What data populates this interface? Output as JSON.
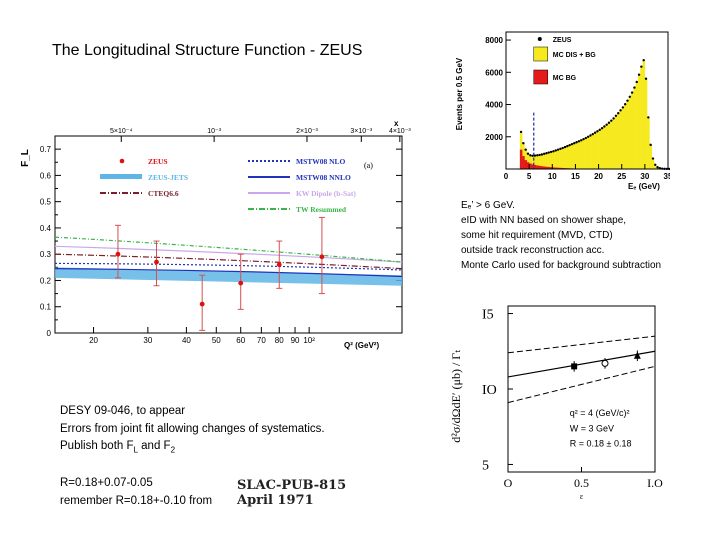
{
  "title": "The Longitudinal Structure Function - ZEUS",
  "cuts_note": {
    "line1": "Eₑ’ > 6 GeV.",
    "line2": "eID with NN based on shower shape,",
    "line3": "some hit requirement (MVD, CTD)",
    "line4": "outside track reconstruction acc.",
    "line5": "Monte Carlo used for background subtraction"
  },
  "desy_note": {
    "line1": "DESY 09-046, to appear",
    "line2": " Errors from joint fit allowing changes of systematics.",
    "line3": " Publish both F_L and F_2"
  },
  "r_note": {
    "line1": "R=0.18+0.07-0.05",
    "line2": "remember R=0.18+-0.10 from"
  },
  "slac_stamp": {
    "line1": "SLAC-PUB-815",
    "line2": "April 1971"
  },
  "chart_data": [
    {
      "type": "scatter",
      "title": "",
      "ylabel": "F_L",
      "xlabel": "Q² (GeV²)",
      "xscale": "log",
      "xlim": [
        15,
        200
      ],
      "ylim": [
        0,
        0.75
      ],
      "x_ticks": [
        "20",
        "30",
        "40",
        "50",
        "60",
        "70",
        "80",
        "90",
        "10²"
      ],
      "y_ticks": [
        "0",
        "0.1",
        "0.2",
        "0.3",
        "0.4",
        "0.5",
        "0.6",
        "0.7"
      ],
      "top_axis": {
        "label": "x",
        "ticks": [
          "5×10⁻⁴",
          "10⁻³",
          "2×10⁻³",
          "3×10⁻³",
          "4×10⁻³"
        ]
      },
      "panel_tag": "(a)",
      "points": [
        {
          "q2": 24,
          "fl": 0.3,
          "err_up": 0.11,
          "err_dn": 0.09
        },
        {
          "q2": 32,
          "fl": 0.27,
          "err_up": 0.08,
          "err_dn": 0.09
        },
        {
          "q2": 45,
          "fl": 0.11,
          "err_up": 0.11,
          "err_dn": 0.1
        },
        {
          "q2": 60,
          "fl": 0.19,
          "err_up": 0.11,
          "err_dn": 0.1
        },
        {
          "q2": 80,
          "fl": 0.26,
          "err_up": 0.09,
          "err_dn": 0.09
        },
        {
          "q2": 110,
          "fl": 0.29,
          "err_up": 0.15,
          "err_dn": 0.14
        }
      ],
      "band": {
        "name": "ZEUS-JETS",
        "color": "#5fb5e6",
        "lower": [
          0.21,
          0.18
        ],
        "upper": [
          0.25,
          0.22
        ]
      },
      "series": [
        {
          "name": "MSTW08 NLO",
          "color": "#2233bb",
          "dash": "2,2",
          "y": [
            0.265,
            0.24
          ]
        },
        {
          "name": "MSTW08 NNLO",
          "color": "#2233bb",
          "dash": "",
          "y": [
            0.245,
            0.215
          ]
        },
        {
          "name": "CTEQ6.6",
          "color": "#7a1f2a",
          "dash": "6,2,1,2",
          "y": [
            0.3,
            0.245
          ]
        },
        {
          "name": "KW Dipole (b-Sat)",
          "color": "#c8a8ea",
          "dash": "",
          "y": [
            0.33,
            0.27
          ]
        },
        {
          "name": "TW Resummed",
          "color": "#3ab54a",
          "dash": "4,2,1,2",
          "y": [
            0.365,
            0.27
          ]
        }
      ],
      "legend": [
        {
          "name": "ZEUS",
          "color": "#dd1111",
          "kind": "point"
        },
        {
          "name": "ZEUS-JETS",
          "color": "#5fb5e6",
          "kind": "band"
        },
        {
          "name": "CTEQ6.6",
          "color": "#7a1f2a",
          "kind": "dashdot"
        },
        {
          "name": "MSTW08 NLO",
          "color": "#2233bb",
          "kind": "dots"
        },
        {
          "name": "MSTW08 NNLO",
          "color": "#2233bb",
          "kind": "solid"
        },
        {
          "name": "KW Dipole (b-Sat)",
          "color": "#c8a8ea",
          "kind": "solid"
        },
        {
          "name": "TW Resummed",
          "color": "#3ab54a",
          "kind": "dashdot"
        }
      ]
    },
    {
      "type": "bar",
      "title": "",
      "xlabel": "Eₑ (GeV)",
      "ylabel": "Events per 0.5 GeV",
      "xlim": [
        0,
        35
      ],
      "ylim": [
        0,
        8500
      ],
      "x_ticks": [
        "0",
        "5",
        "10",
        "15",
        "20",
        "25",
        "30",
        "35"
      ],
      "y_ticks": [
        "2000",
        "4000",
        "6000",
        "8000"
      ],
      "bin_width": 0.5,
      "bins_start": 3.0,
      "mc_total": [
        2300,
        1600,
        1200,
        950,
        850,
        820,
        830,
        850,
        870,
        900,
        940,
        980,
        1020,
        1060,
        1100,
        1150,
        1200,
        1250,
        1300,
        1360,
        1420,
        1480,
        1540,
        1600,
        1660,
        1720,
        1780,
        1850,
        1920,
        2000,
        2080,
        2160,
        2250,
        2340,
        2430,
        2530,
        2640,
        2750,
        2870,
        3000,
        3140,
        3300,
        3460,
        3640,
        3820,
        4020,
        4240,
        4480,
        4740,
        5050,
        5400,
        5850,
        6350,
        6750,
        5600,
        3200,
        1500,
        650,
        260,
        110,
        50,
        20,
        10,
        6,
        4,
        2
      ],
      "mc_bg": [
        1200,
        800,
        550,
        420,
        340,
        290,
        250,
        220,
        195,
        175,
        155,
        140,
        125,
        112,
        100,
        90,
        80,
        72,
        64,
        57,
        50,
        44,
        38,
        33,
        28,
        24,
        20,
        17,
        14,
        12,
        10,
        8,
        7,
        6,
        5,
        4,
        3,
        3,
        2,
        2,
        2,
        1,
        1,
        1,
        1,
        1,
        1,
        1,
        1,
        1,
        1,
        1,
        1,
        0,
        0,
        0,
        0,
        0,
        0,
        0,
        0,
        0,
        0,
        0,
        0,
        0
      ],
      "cut_line_x": 6,
      "legend": [
        {
          "name": "ZEUS",
          "color": "#000000",
          "kind": "point"
        },
        {
          "name": "MC DIS + BG",
          "color": "#f6ea1f",
          "kind": "box"
        },
        {
          "name": "MC BG",
          "color": "#e31b1b",
          "kind": "box"
        }
      ]
    },
    {
      "type": "scatter",
      "title": "",
      "xlabel": "ε",
      "ylabel": "d²σ/dΩdE′ (μb) / Γₜ",
      "xlim": [
        0,
        1
      ],
      "ylim": [
        4.5,
        15.5
      ],
      "x_ticks": [
        "O",
        "0.5",
        "I.O"
      ],
      "y_ticks": [
        "5",
        "IO",
        "I5"
      ],
      "annotation": {
        "line1": "q² = 4 (GeV/c)²",
        "line2": "W = 3 GeV",
        "line3": "R = 0.18 ± 0.18"
      },
      "points": [
        {
          "eps": 0.45,
          "y": 11.5,
          "err": 0.35,
          "marker": "square"
        },
        {
          "eps": 0.66,
          "y": 11.7,
          "err": 0.35,
          "marker": "circle"
        },
        {
          "eps": 0.88,
          "y": 12.2,
          "err": 0.35,
          "marker": "triangle"
        }
      ],
      "fit_line": {
        "y0": 10.8,
        "y1": 12.5
      },
      "error_band_upper": {
        "y0": 12.4,
        "y1": 13.5
      },
      "error_band_lower": {
        "y0": 9.1,
        "y1": 11.5
      }
    }
  ]
}
